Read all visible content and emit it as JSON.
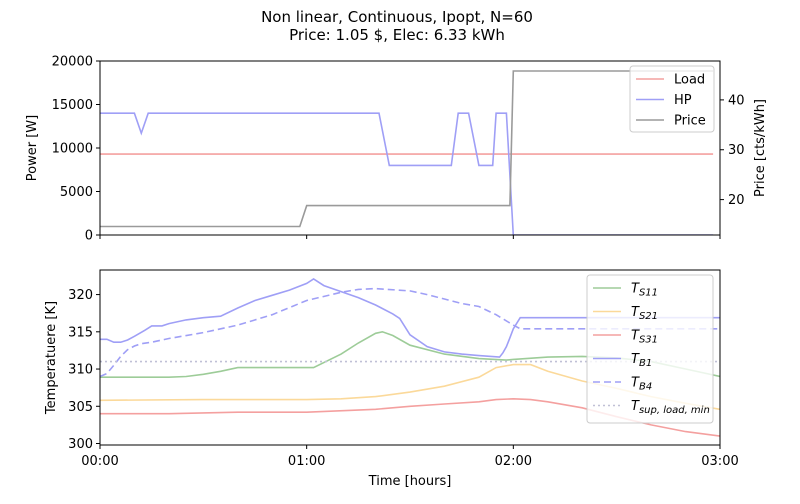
{
  "chart_data": {
    "title_line1": "Non linear, Continuous, Ipopt, N=60",
    "title_line2": "Price: 1.05 $, Elec: 6.33 kWh",
    "xlabel": "Time [hours]",
    "xticks": [
      "00:00",
      "01:00",
      "02:00",
      "03:00"
    ],
    "charts": [
      {
        "type": "line",
        "id": "top",
        "ylabel": "Power [W]",
        "ylim": [
          0,
          20000
        ],
        "yticks": [
          0,
          5000,
          10000,
          15000,
          20000
        ],
        "y2label": "Price [cts/kWh]",
        "y2lim": [
          12.9,
          47.8
        ],
        "y2ticks": [
          20,
          30,
          40
        ],
        "legend": "top-right",
        "xlim": [
          0,
          180
        ],
        "series": [
          {
            "name": "Load",
            "axis": "left",
            "color": "#f4a09f",
            "dash": "solid",
            "x": [
              0,
              178
            ],
            "y": [
              9300,
              9300
            ]
          },
          {
            "name": "HP",
            "axis": "left",
            "color": "#9f9ff6",
            "dash": "solid",
            "x": [
              0,
              10,
              12,
              14,
              81,
              84,
              102,
              104,
              105,
              107,
              110,
              114,
              115,
              117,
              118,
              120,
              178
            ],
            "y": [
              14000,
              14000,
              11700,
              14000,
              14000,
              8000,
              8000,
              14000,
              14000,
              14000,
              8000,
              8000,
              14000,
              14000,
              14000,
              0,
              0
            ]
          },
          {
            "name": "Price",
            "axis": "right",
            "color": "#9a9a9a",
            "dash": "solid",
            "x": [
              0,
              58,
              60,
              119,
              120,
              178
            ],
            "y": [
              14.6,
              14.6,
              18.8,
              18.8,
              45.8,
              45.8
            ]
          }
        ]
      },
      {
        "type": "line",
        "id": "bottom",
        "ylabel": "Temperatuere [K]",
        "ylim": [
          299.8,
          323.3
        ],
        "yticks": [
          300,
          305,
          310,
          315,
          320
        ],
        "legend": "top-right",
        "xlim": [
          0,
          180
        ],
        "series": [
          {
            "name": "T_S11",
            "label_main": "T",
            "label_sub": "S11",
            "color": "#9dcc98",
            "dash": "solid",
            "x": [
              0,
              15,
              20,
              25,
              30,
              35,
              40,
              50,
              55,
              60,
              62,
              70,
              75,
              80,
              82,
              85,
              90,
              100,
              110,
              118,
              120,
              130,
              140,
              150,
              160,
              170,
              180
            ],
            "y": [
              308.9,
              308.9,
              308.9,
              309.0,
              309.3,
              309.7,
              310.2,
              310.2,
              310.2,
              310.2,
              310.2,
              312.0,
              313.5,
              314.8,
              315.0,
              314.5,
              313.2,
              312.0,
              311.4,
              311.2,
              311.3,
              311.6,
              311.7,
              311.5,
              311.0,
              310.0,
              309.0
            ]
          },
          {
            "name": "T_S21",
            "label_main": "T",
            "label_sub": "S21",
            "color": "#fbd99a",
            "dash": "solid",
            "x": [
              0,
              30,
              60,
              70,
              80,
              90,
              100,
              110,
              115,
              120,
              125,
              130,
              140,
              150,
              160,
              170,
              180
            ],
            "y": [
              305.8,
              305.9,
              305.9,
              306.0,
              306.3,
              306.9,
              307.7,
              308.9,
              310.2,
              310.6,
              310.6,
              309.7,
              308.4,
              307.4,
              306.3,
              305.4,
              304.6
            ]
          },
          {
            "name": "T_S31",
            "label_main": "T",
            "label_sub": "S31",
            "color": "#f4a09f",
            "dash": "solid",
            "x": [
              0,
              20,
              40,
              60,
              80,
              90,
              100,
              110,
              115,
              120,
              125,
              130,
              140,
              150,
              160,
              170,
              180
            ],
            "y": [
              304.0,
              304.0,
              304.2,
              304.2,
              304.6,
              305.0,
              305.3,
              305.6,
              305.9,
              306.0,
              305.9,
              305.6,
              304.8,
              303.6,
              302.5,
              301.6,
              301.0
            ]
          },
          {
            "name": "T_B1",
            "label_main": "T",
            "label_sub": "B1",
            "color": "#9f9ff6",
            "dash": "solid",
            "x": [
              0,
              2,
              4,
              6,
              8,
              10,
              13,
              15,
              16,
              18,
              20,
              25,
              30,
              35,
              40,
              45,
              50,
              55,
              60,
              62,
              65,
              70,
              75,
              80,
              85,
              87,
              90,
              95,
              100,
              105,
              110,
              116,
              117,
              118,
              119,
              120,
              122,
              130,
              140,
              150,
              160,
              170,
              180
            ],
            "y": [
              314.0,
              314.0,
              313.6,
              313.6,
              313.9,
              314.4,
              315.2,
              315.8,
              315.8,
              315.8,
              316.1,
              316.6,
              316.9,
              317.1,
              318.2,
              319.2,
              319.9,
              320.6,
              321.5,
              322.1,
              321.2,
              320.4,
              319.6,
              318.6,
              317.4,
              316.8,
              314.6,
              313.0,
              312.3,
              312.0,
              311.8,
              311.6,
              312.2,
              313.0,
              314.2,
              315.4,
              316.9,
              316.9,
              316.9,
              316.9,
              316.9,
              316.9,
              316.9
            ]
          },
          {
            "name": "T_B4",
            "label_main": "T",
            "label_sub": "B4",
            "color": "#9f9ff6",
            "dash": "dashed",
            "x": [
              0,
              2,
              4,
              6,
              8,
              10,
              12,
              15,
              20,
              30,
              40,
              50,
              60,
              70,
              75,
              80,
              90,
              95,
              100,
              105,
              110,
              115,
              120,
              122,
              130,
              140,
              150,
              160,
              170,
              180
            ],
            "y": [
              309.0,
              309.4,
              310.5,
              311.7,
              312.6,
              313.1,
              313.4,
              313.6,
              314.1,
              314.9,
              315.9,
              317.3,
              319.2,
              320.3,
              320.7,
              320.8,
              320.5,
              320.0,
              319.4,
              318.8,
              318.4,
              317.3,
              315.9,
              315.4,
              315.4,
              315.4,
              315.4,
              315.4,
              315.4,
              315.4
            ]
          },
          {
            "name": "T_sup,load,min",
            "label_main": "T",
            "label_sub": "sup, load, min",
            "color": "#c0c0d6",
            "dash": "dotted",
            "x": [
              0,
              180
            ],
            "y": [
              311.0,
              311.0
            ]
          }
        ]
      }
    ]
  }
}
